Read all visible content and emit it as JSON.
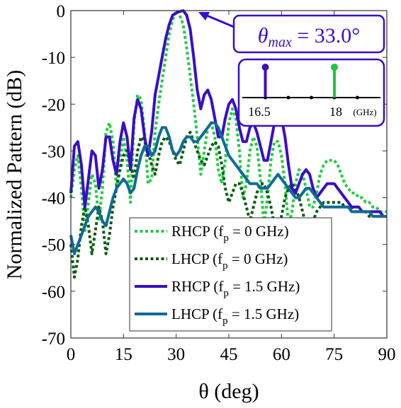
{
  "chart_data": {
    "type": "line",
    "xlabel": "θ (deg)",
    "ylabel": "Normalized Pattern (dB)",
    "xlim": [
      0,
      90
    ],
    "ylim": [
      -70,
      0
    ],
    "x_ticks": [
      "0",
      "15",
      "30",
      "45",
      "60",
      "75",
      "90"
    ],
    "y_ticks": [
      "0",
      "-10",
      "-20",
      "-30",
      "-40",
      "-50",
      "-60",
      "-70"
    ],
    "grid": false,
    "legend_position": "bottom-center",
    "annotation": {
      "label": "θmax = 33.0°",
      "symbol": "θ",
      "subscript": "max",
      "value_text": " = 33.0°",
      "points_to": [
        33.0,
        0
      ]
    },
    "inset": {
      "tick_left_label": "16.5",
      "tick_right_label": "18",
      "unit_label": "(GHz)",
      "stems": [
        {
          "freq": 16.5,
          "color": "#3a0ec6"
        },
        {
          "freq": 18.0,
          "color": "#1ac83c"
        }
      ],
      "x_range": [
        16.0,
        19.0
      ]
    },
    "series": [
      {
        "name": "RHCP (f_p = 0 GHz)",
        "legend_main": "RHCP (f",
        "legend_sub": "p",
        "legend_tail": " = 0 GHz)",
        "color": "#22cc44",
        "style": "dotted",
        "x": [
          0,
          1,
          2,
          3,
          4,
          5,
          6,
          7,
          8,
          9,
          10,
          11,
          12,
          13,
          14,
          15,
          16,
          17,
          18,
          19,
          20,
          21,
          22,
          23,
          24,
          25,
          26,
          27,
          28,
          29,
          30,
          31,
          32,
          33,
          34,
          35,
          36,
          37,
          38,
          39,
          40,
          41,
          42,
          43,
          44,
          45,
          46,
          47,
          48,
          49,
          50,
          51,
          52,
          53,
          54,
          55,
          56,
          57,
          58,
          59,
          60,
          61,
          62,
          63,
          64,
          65,
          66,
          67,
          68,
          69,
          70,
          71,
          72,
          73,
          74,
          75,
          76,
          77,
          78,
          79,
          80,
          81,
          82,
          83,
          84,
          85,
          86,
          87,
          88,
          89,
          90
        ],
        "y": [
          -40,
          -34,
          -31,
          -38,
          -47,
          -41,
          -35,
          -37,
          -45,
          -38,
          -26,
          -24,
          -28,
          -38,
          -32,
          -27,
          -32,
          -41,
          -24,
          -18,
          -19,
          -26,
          -37,
          -36,
          -26,
          -20,
          -15,
          -10,
          -5,
          -2,
          0,
          -1,
          -3,
          -8,
          -14,
          -20,
          -27,
          -35,
          -30,
          -25,
          -24,
          -27,
          -34,
          -37,
          -32,
          -24,
          -21,
          -23,
          -30,
          -40,
          -37,
          -30,
          -27,
          -29,
          -36,
          -46,
          -40,
          -32,
          -28,
          -28,
          -31,
          -37,
          -46,
          -43,
          -37,
          -34,
          -35,
          -38,
          -42,
          -42,
          -39,
          -35,
          -33,
          -32,
          -32,
          -32,
          -33,
          -35,
          -37,
          -38,
          -39,
          -39,
          -40,
          -40,
          -41,
          -41,
          -42,
          -42,
          -43,
          -43,
          -43
        ]
      },
      {
        "name": "LHCP (f_p = 0 GHz)",
        "legend_main": "LHCP (f",
        "legend_sub": "p",
        "legend_tail": " = 0 GHz)",
        "color": "#0b5c12",
        "style": "dotted",
        "x": [
          0,
          1,
          2,
          3,
          4,
          5,
          6,
          7,
          8,
          9,
          10,
          11,
          12,
          13,
          14,
          15,
          16,
          17,
          18,
          19,
          20,
          21,
          22,
          23,
          24,
          25,
          26,
          27,
          28,
          29,
          30,
          31,
          32,
          33,
          34,
          35,
          36,
          37,
          38,
          39,
          40,
          41,
          42,
          43,
          44,
          45,
          46,
          47,
          48,
          49,
          50,
          51,
          52,
          53,
          54,
          55,
          56,
          57,
          58,
          59,
          60,
          61,
          62,
          63,
          64,
          65,
          66,
          67,
          68,
          69,
          70,
          71,
          72,
          73,
          74,
          75,
          76,
          77,
          78,
          79,
          80,
          81,
          82,
          83,
          84,
          85,
          86,
          87,
          88,
          89,
          90
        ],
        "y": [
          -50,
          -57,
          -53,
          -46,
          -42,
          -46,
          -52,
          -47,
          -42,
          -45,
          -52,
          -48,
          -42,
          -38,
          -34,
          -31,
          -30,
          -33,
          -36,
          -30,
          -27,
          -28,
          -30,
          -33,
          -35,
          -31,
          -28,
          -27,
          -28,
          -30,
          -32,
          -33,
          -30,
          -27,
          -26,
          -28,
          -30,
          -32,
          -33,
          -31,
          -29,
          -28,
          -29,
          -33,
          -38,
          -41,
          -39,
          -37,
          -37,
          -39,
          -42,
          -45,
          -42,
          -39,
          -37,
          -37,
          -39,
          -42,
          -46,
          -48,
          -44,
          -40,
          -38,
          -37,
          -38,
          -40,
          -43,
          -46,
          -47,
          -45,
          -43,
          -42,
          -41,
          -41,
          -41,
          -41,
          -41,
          -41,
          -42,
          -42,
          -42,
          -43,
          -43,
          -43,
          -43,
          -44,
          -44,
          -44,
          -44,
          -44,
          -44
        ]
      },
      {
        "name": "RHCP (f_p = 1.5 GHz)",
        "legend_main": "RHCP (f",
        "legend_sub": "p",
        "legend_tail": " = 1.5 GHz)",
        "color": "#3a0ec6",
        "style": "solid",
        "x": [
          0,
          1,
          2,
          3,
          4,
          5,
          6,
          7,
          8,
          9,
          10,
          11,
          12,
          13,
          14,
          15,
          16,
          17,
          18,
          19,
          20,
          21,
          22,
          23,
          24,
          25,
          26,
          27,
          28,
          29,
          30,
          31,
          32,
          33,
          34,
          35,
          36,
          37,
          38,
          39,
          40,
          41,
          42,
          43,
          44,
          45,
          46,
          47,
          48,
          49,
          50,
          51,
          52,
          53,
          54,
          55,
          56,
          57,
          58,
          59,
          60,
          61,
          62,
          63,
          64,
          65,
          66,
          67,
          68,
          69,
          70,
          71,
          72,
          73,
          74,
          75,
          76,
          77,
          78,
          79,
          80,
          81,
          82,
          83,
          84,
          85,
          86,
          87,
          88,
          89,
          90
        ],
        "y": [
          -39,
          -29,
          -28,
          -33,
          -42,
          -36,
          -30,
          -31,
          -38,
          -34,
          -27,
          -27,
          -32,
          -35,
          -28,
          -24,
          -27,
          -34,
          -23,
          -19,
          -21,
          -27,
          -31,
          -26,
          -18,
          -14,
          -10,
          -6,
          -3,
          -1,
          -0.5,
          -0.2,
          0,
          -1,
          -4,
          -10,
          -17,
          -21,
          -18,
          -17,
          -19,
          -23,
          -27,
          -27,
          -23,
          -20,
          -19,
          -21,
          -25,
          -28,
          -28,
          -25,
          -24,
          -26,
          -29,
          -32,
          -32,
          -28,
          -24,
          -22,
          -23,
          -27,
          -33,
          -38,
          -39,
          -37,
          -35,
          -34,
          -35,
          -38,
          -40,
          -39,
          -38,
          -37,
          -37,
          -37,
          -38,
          -39,
          -40,
          -41,
          -42,
          -42,
          -42,
          -43,
          -43,
          -43,
          -43,
          -43,
          -43,
          -44,
          -44
        ]
      },
      {
        "name": "LHCP (f_p = 1.5 GHz)",
        "legend_main": "LHCP (f",
        "legend_sub": "p",
        "legend_tail": " = 1.5 GHz)",
        "color": "#0e6c95",
        "style": "solid",
        "x": [
          0,
          1,
          2,
          3,
          4,
          5,
          6,
          7,
          8,
          9,
          10,
          11,
          12,
          13,
          14,
          15,
          16,
          17,
          18,
          19,
          20,
          21,
          22,
          23,
          24,
          25,
          26,
          27,
          28,
          29,
          30,
          31,
          32,
          33,
          34,
          35,
          36,
          37,
          38,
          39,
          40,
          41,
          42,
          43,
          44,
          45,
          46,
          47,
          48,
          49,
          50,
          51,
          52,
          53,
          54,
          55,
          56,
          57,
          58,
          59,
          60,
          61,
          62,
          63,
          64,
          65,
          66,
          67,
          68,
          69,
          70,
          71,
          72,
          73,
          74,
          75,
          76,
          77,
          78,
          79,
          80,
          81,
          82,
          83,
          84,
          85,
          86,
          87,
          88,
          89,
          90
        ],
        "y": [
          -48,
          -52,
          -50,
          -48,
          -46,
          -44,
          -43,
          -42,
          -43,
          -45,
          -46,
          -43,
          -40,
          -38,
          -37,
          -36,
          -37,
          -39,
          -38,
          -34,
          -31,
          -29,
          -29,
          -31,
          -30,
          -27,
          -25,
          -25,
          -27,
          -30,
          -31,
          -30,
          -28,
          -27,
          -27,
          -28,
          -28,
          -27,
          -26,
          -25,
          -24,
          -24,
          -25,
          -27,
          -29,
          -31,
          -32,
          -33,
          -34,
          -35,
          -36,
          -37,
          -37,
          -37,
          -38,
          -38,
          -38,
          -37,
          -36,
          -35,
          -36,
          -37,
          -38,
          -39,
          -40,
          -40,
          -39,
          -38,
          -38,
          -39,
          -40,
          -41,
          -42,
          -42,
          -42,
          -42,
          -42,
          -42,
          -42,
          -42,
          -43,
          -43,
          -43,
          -43,
          -43,
          -43,
          -44,
          -44,
          -44,
          -44,
          -44
        ]
      }
    ]
  }
}
